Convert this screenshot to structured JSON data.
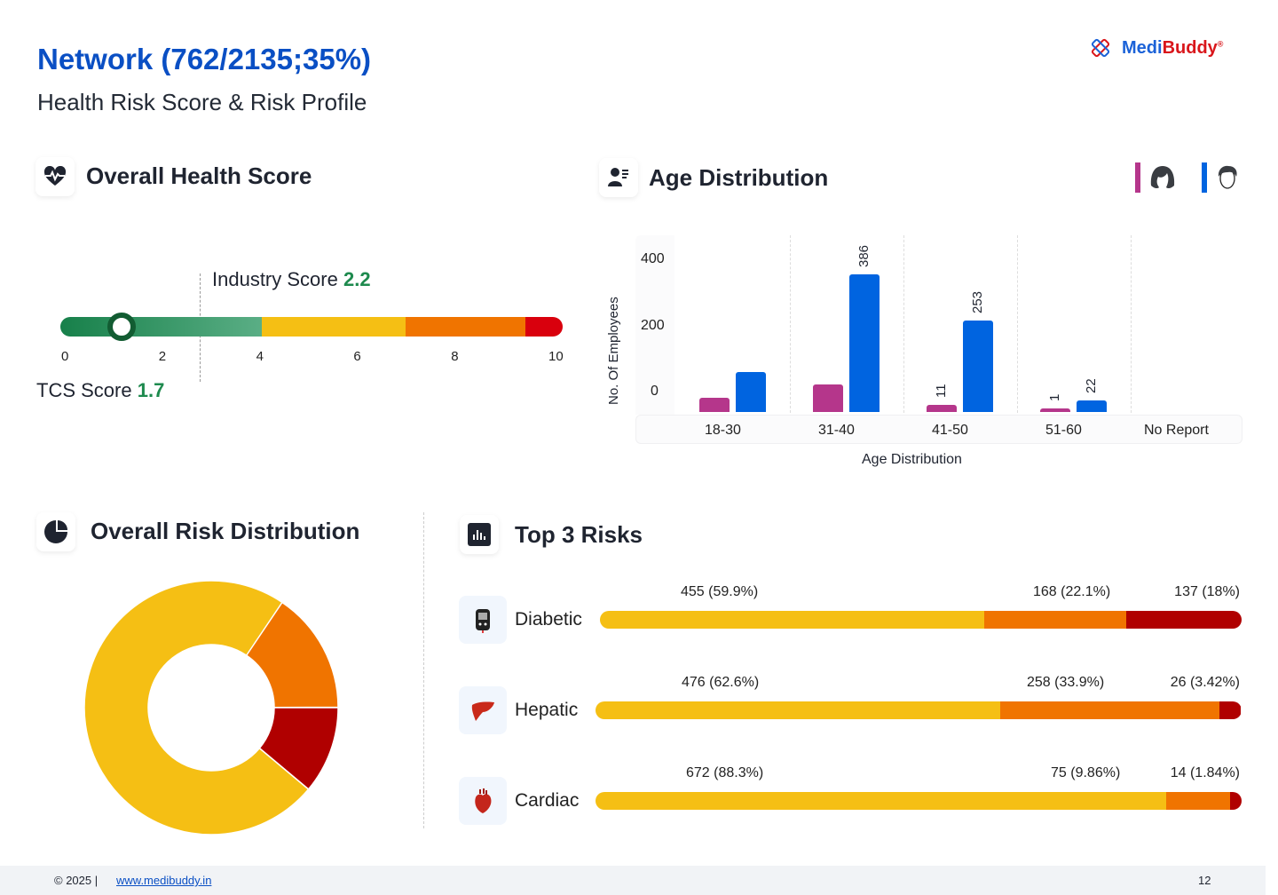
{
  "header": {
    "title": "Network (762/2135;35%)",
    "subtitle": "Health Risk Score & Risk Profile",
    "logo": {
      "part1": "Medi",
      "part2": "Buddy",
      "mark": "®"
    }
  },
  "health_score": {
    "title": "Overall Health Score",
    "icon": "heart-pulse-icon",
    "industry_label": "Industry Score",
    "industry_value": "2.2",
    "tcs_label": "TCS Score",
    "tcs_value": "1.7",
    "ticks": [
      "0",
      "2",
      "4",
      "6",
      "8",
      "10"
    ],
    "bands": [
      {
        "to": 4,
        "color": "#2e8b57"
      },
      {
        "to": 6.9,
        "color": "#f5bf14"
      },
      {
        "to": 9.3,
        "color": "#f07400"
      },
      {
        "to": 10,
        "color": "#d9000d"
      }
    ]
  },
  "age": {
    "title": "Age Distribution",
    "icon": "user-list-icon",
    "legend": [
      {
        "icon": "female-icon",
        "color": "#b5368b"
      },
      {
        "icon": "male-icon",
        "color": "#0064e0"
      }
    ]
  },
  "chart_data": [
    {
      "type": "bar",
      "xlabel": "Age Distribution",
      "ylabel": "No. Of Employees",
      "yticks": [
        "400",
        "200",
        "0"
      ],
      "categories": [
        "18-30",
        "31-40",
        "41-50",
        "51-60",
        "No Report"
      ],
      "series": [
        {
          "color": "#b5368b",
          "values": [
            30,
            70,
            11,
            1,
            0
          ],
          "labels": [
            "",
            "",
            "11",
            "1",
            ""
          ]
        },
        {
          "color": "#0064e0",
          "values": [
            105,
            386,
            253,
            22,
            0
          ],
          "labels": [
            "",
            "386",
            "253",
            "22",
            ""
          ]
        }
      ]
    },
    {
      "type": "pie",
      "title": "Overall Risk Distribution",
      "values": [
        73.4,
        15.5,
        11.1
      ],
      "colors": [
        "#f5bf14",
        "#f07400",
        "#b00000"
      ]
    }
  ],
  "risk_dist": {
    "title": "Overall Risk Distribution",
    "icon": "pie-chart-icon"
  },
  "top_risks": {
    "title": "Top 3 Risks",
    "icon": "bar-chart-icon",
    "items": [
      {
        "name": "Diabetic",
        "icon": "glucometer-icon",
        "segments": [
          {
            "label": "455 (59.9%)",
            "pct": 59.9
          },
          {
            "label": "168 (22.1%)",
            "pct": 22.1
          },
          {
            "label": "137 (18%)",
            "pct": 18
          }
        ]
      },
      {
        "name": "Hepatic",
        "icon": "liver-icon",
        "segments": [
          {
            "label": "476 (62.6%)",
            "pct": 62.6
          },
          {
            "label": "258 (33.9%)",
            "pct": 33.9
          },
          {
            "label": "26 (3.42%)",
            "pct": 3.42
          }
        ]
      },
      {
        "name": "Cardiac",
        "icon": "heart-icon",
        "segments": [
          {
            "label": "672 (88.3%)",
            "pct": 88.3
          },
          {
            "label": "75 (9.86%)",
            "pct": 9.86
          },
          {
            "label": "14 (1.84%)",
            "pct": 1.84
          }
        ]
      }
    ],
    "colors": [
      "#f5bf14",
      "#f07400",
      "#b00000"
    ]
  },
  "footer": {
    "copyright": "© 2025  |",
    "link": "www.medibuddy.in",
    "page": "12"
  }
}
